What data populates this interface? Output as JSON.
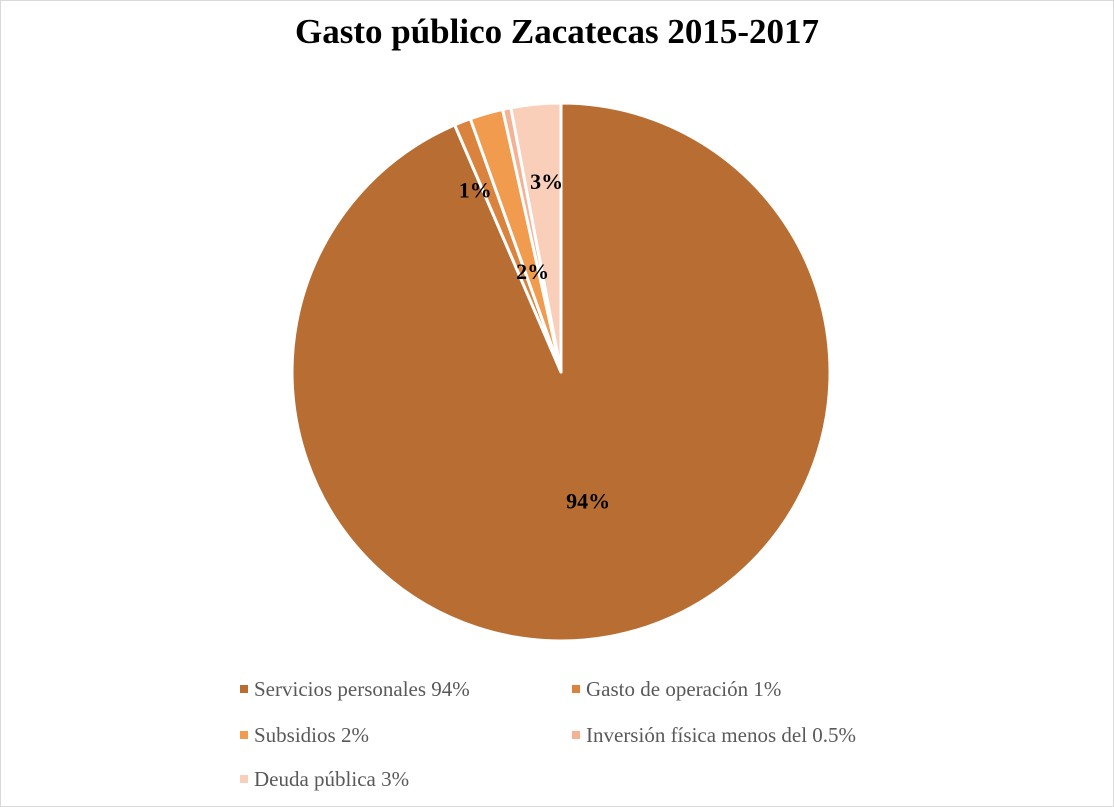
{
  "chart_data": {
    "type": "pie",
    "title": "Gasto público Zacatecas 2015-2017",
    "slices": [
      {
        "name": "Servicios personales 94%",
        "value": 94,
        "label": "94%",
        "color": "#b86e33"
      },
      {
        "name": "Gasto de operación 1%",
        "value": 1,
        "label": "1%",
        "color": "#d9833e"
      },
      {
        "name": "Subsidios 2%",
        "value": 2,
        "label": "2%",
        "color": "#f19b4f"
      },
      {
        "name": "Inversión física menos del 0.5%",
        "value": 0.5,
        "label": "",
        "color": "#f4b193"
      },
      {
        "name": "Deuda pública 3%",
        "value": 3,
        "label": "3%",
        "color": "#f9cfba"
      }
    ],
    "legend_position": "bottom",
    "start_angle": "12 o'clock",
    "direction": "clockwise"
  }
}
